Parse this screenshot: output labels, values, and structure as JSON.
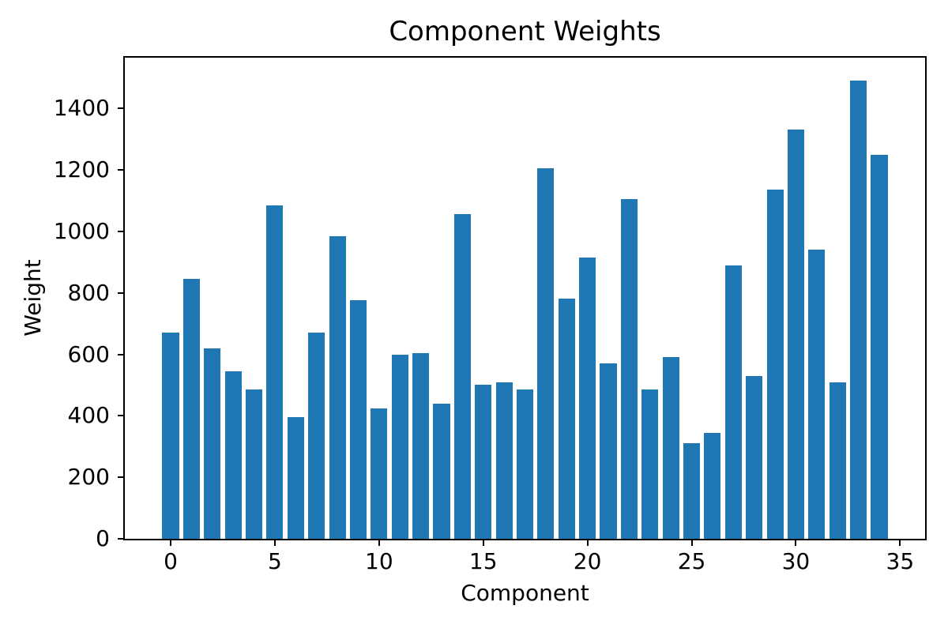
{
  "chart_data": {
    "type": "bar",
    "title": "Component Weights",
    "xlabel": "Component",
    "ylabel": "Weight",
    "x": [
      0,
      1,
      2,
      3,
      4,
      5,
      6,
      7,
      8,
      9,
      10,
      11,
      12,
      13,
      14,
      15,
      16,
      17,
      18,
      19,
      20,
      21,
      22,
      23,
      24,
      25,
      26,
      27,
      28,
      29,
      30,
      31,
      32,
      33,
      34
    ],
    "values": [
      670,
      845,
      620,
      545,
      485,
      1085,
      395,
      670,
      985,
      775,
      425,
      600,
      605,
      440,
      1055,
      500,
      510,
      485,
      1205,
      780,
      915,
      570,
      1105,
      485,
      590,
      310,
      345,
      890,
      530,
      1135,
      1330,
      940,
      510,
      1490,
      1250
    ],
    "xticks": [
      0,
      5,
      10,
      15,
      20,
      25,
      30,
      35
    ],
    "yticks": [
      0,
      200,
      400,
      600,
      800,
      1000,
      1200,
      1400
    ],
    "xlim": [
      -2.2,
      36.2
    ],
    "ylim": [
      0,
      1565
    ],
    "bar_width": 0.8,
    "bar_color": "#1f77b4",
    "axis_color": "#000000",
    "background_color": "#ffffff",
    "grid": false,
    "legend_position": "none"
  }
}
